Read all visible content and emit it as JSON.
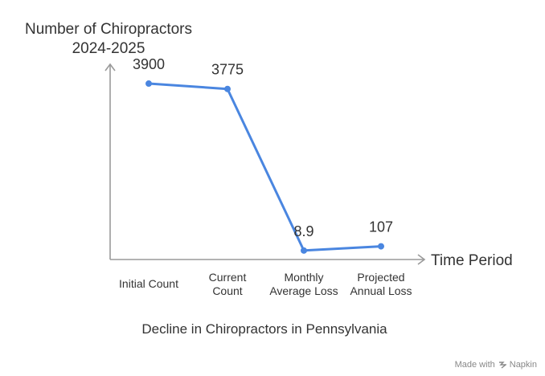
{
  "chart_data": {
    "type": "line",
    "ylabel": [
      "Number of Chiropractors",
      "2024-2025"
    ],
    "xlabel": "Time Period",
    "caption": "Decline in Chiropractors in Pennsylvania",
    "categories": [
      [
        "Initial Count"
      ],
      [
        "Current",
        "Count"
      ],
      [
        "Monthly",
        "Average Loss"
      ],
      [
        "Projected",
        "Annual Loss"
      ]
    ],
    "values": [
      3900,
      3775,
      8.9,
      107
    ],
    "data_labels": [
      "3900",
      "3775",
      "8.9",
      "107"
    ],
    "ylim": [
      -200,
      4350
    ],
    "grid": false,
    "line_color": "#4a86e0"
  },
  "credit": {
    "made_with": "Made with",
    "brand": "Napkin",
    "icon": "napkin-logo-icon"
  }
}
